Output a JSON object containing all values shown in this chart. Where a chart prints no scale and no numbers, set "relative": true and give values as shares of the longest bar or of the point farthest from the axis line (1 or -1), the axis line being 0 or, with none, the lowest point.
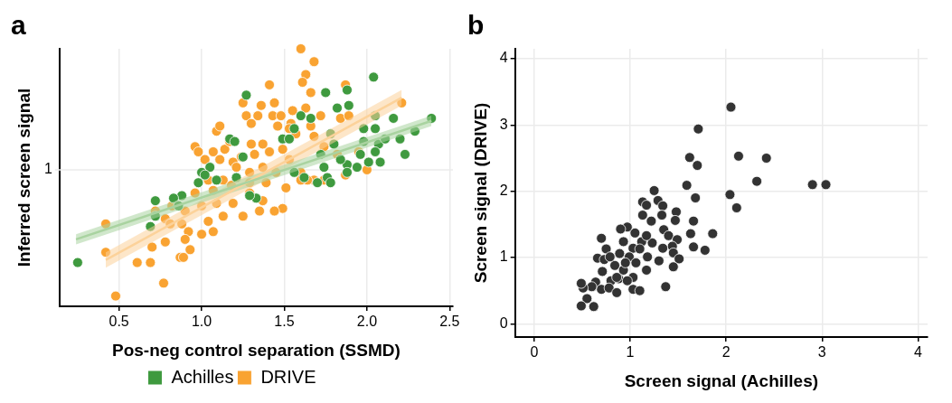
{
  "chart_data": [
    {
      "type": "scatter",
      "title": "a",
      "xlabel": "Pos-neg control separation (SSMD)",
      "ylabel": "Inferred screen signal",
      "relative": true,
      "xlim": [
        0.14,
        2.52
      ],
      "xticks": [
        0.5,
        {
          "value": 1,
          "label": "1.0"
        },
        1.5,
        {
          "value": 2,
          "label": "2.0"
        },
        2.5
      ],
      "grid": "x",
      "legend": "bottom",
      "marker": "circle",
      "ref_lines": [
        {
          "axis": "y",
          "value": 0.53,
          "label": "1",
          "color": "#ebebeb"
        }
      ],
      "series": [
        {
          "name": "Achilles",
          "color": "#3f9a3f",
          "x": [
            2.04,
            1.27,
            1.75,
            1.88,
            1.82,
            1.89,
            2.05,
            2.16,
            2.39,
            1.6,
            1.66,
            1.17,
            1.2,
            1.49,
            1.56,
            1.78,
            1.98,
            2.05,
            2.2,
            2.29,
            1.98,
            2.07,
            1.96,
            2.05,
            2.08,
            1.88,
            1.94,
            2.01,
            1.8,
            1.84,
            1.76,
            1.7,
            1.62,
            1.56,
            1.53,
            1.05,
            1.0,
            1.09,
            1.25,
            1.33,
            1.29,
            0.88,
            0.83,
            0.72,
            0.86,
            0.72,
            0.69,
            0.25,
            0.98,
            1.21,
            1.74,
            1.72,
            2.11,
            2.23,
            1.88,
            1.78,
            1.02
          ],
          "values": [
            0.89,
            0.82,
            0.83,
            0.84,
            0.77,
            0.78,
            0.74,
            0.73,
            0.73,
            0.74,
            0.73,
            0.65,
            0.64,
            0.65,
            0.69,
            0.67,
            0.69,
            0.69,
            0.65,
            0.68,
            0.64,
            0.63,
            0.59,
            0.6,
            0.56,
            0.55,
            0.54,
            0.56,
            0.63,
            0.57,
            0.5,
            0.48,
            0.5,
            0.52,
            0.65,
            0.54,
            0.52,
            0.49,
            0.58,
            0.42,
            0.43,
            0.43,
            0.42,
            0.41,
            0.39,
            0.35,
            0.31,
            0.17,
            0.48,
            0.5,
            0.54,
            0.59,
            0.65,
            0.59,
            0.52,
            0.48,
            0.51
          ]
        },
        {
          "name": "DRIVE",
          "color": "#f9a332",
          "x": [
            1.6,
            1.68,
            1.63,
            1.61,
            1.66,
            1.41,
            1.87,
            1.25,
            1.36,
            1.44,
            1.27,
            1.34,
            1.43,
            1.48,
            1.55,
            1.63,
            1.72,
            1.09,
            1.11,
            1.3,
            1.46,
            1.54,
            0.96,
            0.98,
            1.07,
            1.14,
            1.17,
            1.3,
            1.37,
            1.49,
            1.57,
            1.66,
            1.84,
            1.89,
            1.02,
            1.11,
            1.19,
            1.24,
            1.32,
            1.41,
            1.53,
            1.68,
            1.74,
            1.82,
            1.95,
            2.21,
            2.0,
            1.87,
            1.04,
            1.13,
            1.21,
            1.29,
            1.37,
            1.45,
            1.6,
            1.68,
            1.74,
            0.96,
            1.07,
            1.18,
            1.29,
            1.39,
            1.51,
            1.64,
            0.82,
            0.9,
            1.0,
            1.09,
            1.19,
            1.29,
            1.37,
            1.49,
            1.44,
            1.35,
            1.25,
            1.13,
            1.04,
            0.88,
            0.92,
            1.0,
            1.07,
            0.78,
            0.42,
            0.42,
            0.7,
            0.78,
            0.61,
            0.69,
            0.87,
            0.93,
            0.9,
            0.77,
            0.48,
            0.89,
            0.72,
            0.81,
            1.6,
            1.53
          ],
          "values": [
            1.0,
            0.95,
            0.9,
            0.87,
            0.83,
            0.86,
            0.86,
            0.79,
            0.78,
            0.79,
            0.74,
            0.74,
            0.74,
            0.74,
            0.76,
            0.77,
            0.74,
            0.68,
            0.7,
            0.71,
            0.7,
            0.71,
            0.62,
            0.6,
            0.6,
            0.61,
            0.64,
            0.63,
            0.63,
            0.61,
            0.67,
            0.7,
            0.73,
            0.74,
            0.57,
            0.57,
            0.56,
            0.58,
            0.59,
            0.6,
            0.57,
            0.66,
            0.62,
            0.59,
            0.6,
            0.79,
            0.53,
            0.51,
            0.49,
            0.49,
            0.54,
            0.52,
            0.54,
            0.52,
            0.52,
            0.49,
            0.49,
            0.44,
            0.45,
            0.47,
            0.48,
            0.48,
            0.46,
            0.49,
            0.39,
            0.37,
            0.39,
            0.4,
            0.4,
            0.44,
            0.41,
            0.38,
            0.37,
            0.37,
            0.35,
            0.35,
            0.33,
            0.32,
            0.29,
            0.28,
            0.29,
            0.34,
            0.32,
            0.21,
            0.23,
            0.25,
            0.17,
            0.17,
            0.19,
            0.22,
            0.26,
            0.09,
            0.04,
            0.19,
            0.37,
            0.32,
            0.49,
            0.69
          ]
        },
        {
          "type": "line",
          "marker": "none",
          "color": "#a9d3a0",
          "x": [
            0.24,
            2.39
          ],
          "values": [
            0.26,
            0.72
          ],
          "lower": [
            0.24,
            0.7
          ],
          "upper": [
            0.28,
            0.74
          ]
        },
        {
          "type": "line",
          "marker": "none",
          "color": "#fcd29a",
          "x": [
            0.42,
            2.21
          ],
          "values": [
            0.18,
            0.81
          ],
          "lower": [
            0.15,
            0.78
          ],
          "upper": [
            0.21,
            0.84
          ]
        }
      ]
    },
    {
      "type": "scatter",
      "title": "b",
      "xlabel": "Screen signal (Achilles)",
      "ylabel": "Screen signal (DRIVE)",
      "xlim": [
        -0.2,
        4.1
      ],
      "xticks": [
        0,
        1,
        2,
        3,
        4
      ],
      "ylim": [
        -0.2,
        4.15
      ],
      "yticks": [
        0,
        1,
        2,
        3,
        4
      ],
      "grid": true,
      "marker": "circle",
      "series": [
        {
          "color": "#333333",
          "x": [
            2.05,
            1.71,
            1.62,
            1.7,
            2.13,
            2.42,
            2.32,
            2.9,
            3.04,
            2.04,
            2.11,
            1.59,
            1.68,
            1.25,
            1.29,
            1.13,
            1.17,
            1.34,
            1.48,
            1.33,
            1.13,
            1.22,
            1.47,
            1.66,
            1.35,
            1.4,
            1.63,
            1.86,
            1.49,
            1.66,
            1.78,
            1.44,
            1.34,
            1.45,
            1.51,
            1.45,
            1.37,
            1.3,
            1.18,
            1.17,
            1.23,
            1.12,
            1.05,
            0.97,
            0.9,
            0.7,
            0.93,
            1.03,
            0.75,
            0.89,
            0.99,
            1.06,
            0.66,
            0.73,
            0.84,
            0.93,
            1.03,
            0.71,
            0.8,
            0.88,
            0.97,
            0.64,
            0.7,
            0.78,
            0.86,
            0.6,
            0.51,
            0.49,
            0.55,
            0.49,
            0.62,
            1.03,
            1.1,
            0.95,
            0.79,
            0.86,
            1.1,
            1.17
          ],
          "values": [
            3.27,
            2.94,
            2.51,
            2.39,
            2.53,
            2.5,
            2.15,
            2.1,
            2.1,
            1.95,
            1.75,
            2.09,
            1.9,
            2.01,
            1.86,
            1.84,
            1.79,
            1.78,
            1.69,
            1.64,
            1.64,
            1.55,
            1.56,
            1.55,
            1.42,
            1.33,
            1.36,
            1.36,
            1.27,
            1.16,
            1.11,
            1.17,
            1.14,
            1.07,
            0.98,
            0.86,
            0.56,
            0.95,
            1.01,
            0.81,
            1.22,
            1.24,
            1.37,
            1.46,
            1.43,
            1.29,
            1.24,
            1.14,
            1.13,
            1.06,
            1.01,
            0.92,
            0.99,
            0.97,
            0.88,
            0.81,
            0.7,
            0.79,
            0.65,
            0.68,
            0.65,
            0.63,
            0.52,
            0.54,
            0.47,
            0.56,
            0.54,
            0.61,
            0.38,
            0.27,
            0.26,
            0.52,
            0.5,
            0.92,
            1.01,
            0.7,
            1.13,
            1.33
          ]
        }
      ]
    }
  ]
}
